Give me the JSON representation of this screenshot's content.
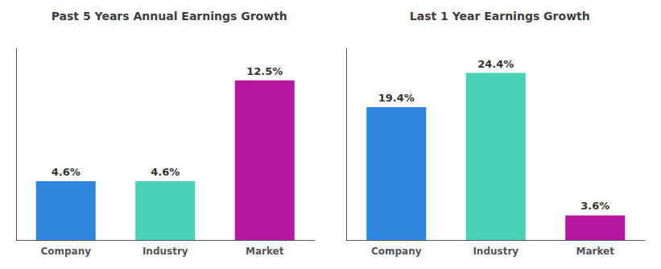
{
  "chart_data": [
    {
      "type": "bar",
      "title": "Past 5 Years Annual Earnings Growth",
      "categories": [
        "Company",
        "Industry",
        "Market"
      ],
      "values": [
        4.6,
        4.6,
        12.5
      ],
      "value_labels": [
        "4.6%",
        "4.6%",
        "12.5%"
      ],
      "colors": [
        "#2e86de",
        "#48d1b5",
        "#b5179e"
      ],
      "ylim": [
        0,
        15
      ],
      "grid": false,
      "data_labels": true,
      "tick_labels": "x"
    },
    {
      "type": "bar",
      "title": "Last 1 Year Earnings Growth",
      "categories": [
        "Company",
        "Industry",
        "Market"
      ],
      "values": [
        19.4,
        24.4,
        3.6
      ],
      "value_labels": [
        "19.4%",
        "24.4%",
        "3.6%"
      ],
      "colors": [
        "#2e86de",
        "#48d1b5",
        "#b5179e"
      ],
      "ylim": [
        0,
        28
      ],
      "grid": false,
      "data_labels": true,
      "tick_labels": "x"
    }
  ]
}
